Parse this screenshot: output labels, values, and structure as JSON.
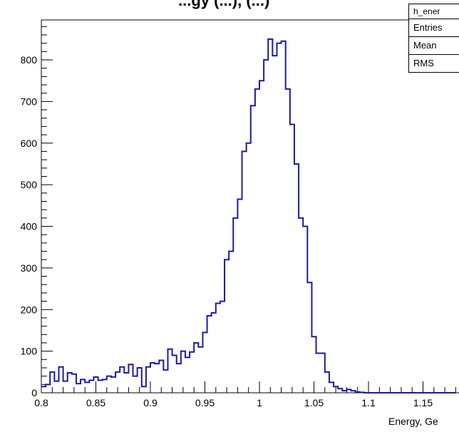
{
  "chart_data": {
    "type": "histogram",
    "title_fragment": "...gy (...), (...)",
    "xlabel": "Energy, Ge",
    "ylabel": "",
    "xlim": [
      0.8,
      1.18
    ],
    "ylim": [
      0,
      900
    ],
    "x_ticks": [
      "0.8",
      "0.85",
      "0.9",
      "0.95",
      "1",
      "1.05",
      "1.1",
      "1.15"
    ],
    "y_ticks": [
      "0",
      "100",
      "200",
      "300",
      "400",
      "500",
      "600",
      "700",
      "800"
    ],
    "bin_width": 0.004,
    "bin_start": 0.8,
    "values": [
      15,
      20,
      50,
      28,
      62,
      28,
      48,
      45,
      22,
      32,
      25,
      30,
      38,
      30,
      32,
      40,
      38,
      50,
      62,
      48,
      68,
      40,
      60,
      15,
      62,
      72,
      70,
      78,
      55,
      105,
      90,
      70,
      100,
      85,
      98,
      120,
      110,
      145,
      185,
      192,
      215,
      220,
      320,
      340,
      420,
      465,
      580,
      600,
      690,
      730,
      750,
      800,
      850,
      810,
      840,
      845,
      730,
      645,
      550,
      420,
      400,
      265,
      135,
      95,
      95,
      50,
      25,
      15,
      10,
      5,
      8,
      5,
      2,
      1,
      0,
      0,
      0,
      0,
      0,
      0,
      0,
      0,
      0,
      0,
      0,
      0,
      0,
      0,
      0,
      0,
      0,
      0,
      0,
      0,
      0
    ],
    "line_color": "#1b1ba0",
    "grid": false,
    "stats_box": {
      "name": "h_ener",
      "rows": [
        "Entries",
        "Mean",
        "RMS"
      ]
    }
  }
}
